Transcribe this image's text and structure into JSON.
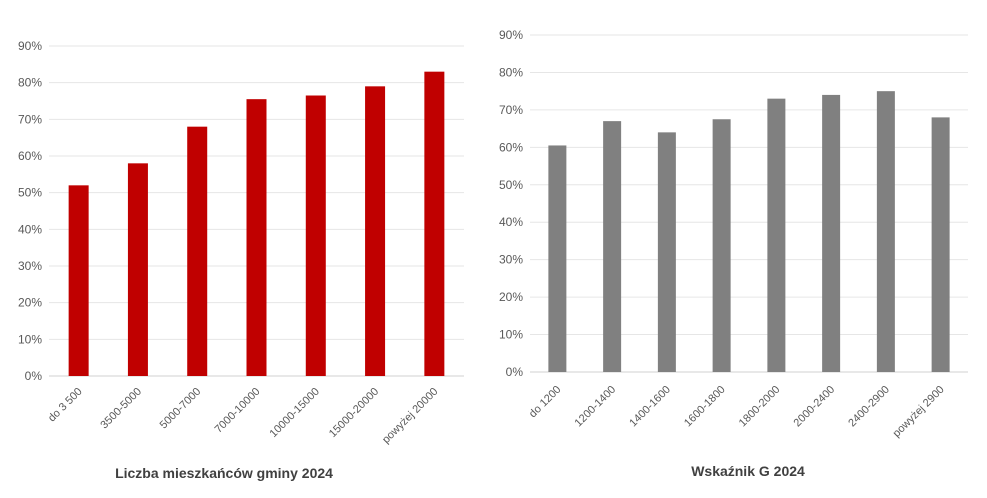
{
  "chart_data": [
    {
      "type": "bar",
      "title": "Liczba mieszkańców gminy 2024",
      "categories": [
        "do 3 500",
        "3500-5000",
        "5000-7000",
        "7000-10000",
        "10000-15000",
        "15000-20000",
        "powyżej 20000"
      ],
      "values": [
        52,
        58,
        68,
        75.5,
        76.5,
        79,
        83
      ],
      "yticks": [
        "0%",
        "10%",
        "20%",
        "30%",
        "40%",
        "50%",
        "60%",
        "70%",
        "80%",
        "90%"
      ],
      "ylim": [
        0,
        90
      ],
      "color": "#c00000",
      "grid": true
    },
    {
      "type": "bar",
      "title": "Wskaźnik G 2024",
      "categories": [
        "do 1200",
        "1200-1400",
        "1400-1600",
        "1600-1800",
        "1800-2000",
        "2000-2400",
        "2400-2900",
        "powyżej 2900"
      ],
      "values": [
        60.5,
        67,
        64,
        67.5,
        73,
        74,
        75,
        68
      ],
      "yticks": [
        "0%",
        "10%",
        "20%",
        "30%",
        "40%",
        "50%",
        "60%",
        "70%",
        "80%",
        "90%"
      ],
      "ylim": [
        0,
        90
      ],
      "color": "#808080",
      "grid": true
    }
  ]
}
